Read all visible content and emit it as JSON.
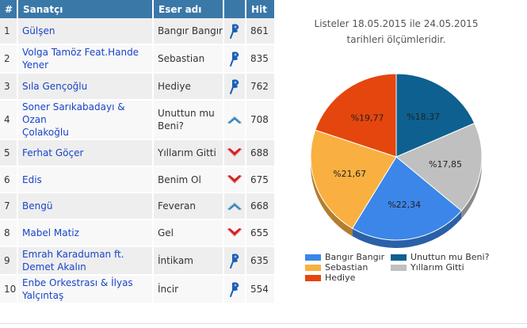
{
  "table": {
    "headers": {
      "rank": "#",
      "artist": "Sanatçı",
      "song": "Eser adı",
      "trend": "",
      "hit": "Hit"
    },
    "rows": [
      {
        "rank": "1",
        "artist_l1": "Gülşen",
        "artist_l2": "",
        "song_l1": "Bangır Bangır",
        "song_l2": "",
        "trend": "same",
        "hit": "861"
      },
      {
        "rank": "2",
        "artist_l1": "Volga Tamöz Feat.Hande",
        "artist_l2": "Yener",
        "song_l1": "Sebastian",
        "song_l2": "",
        "trend": "same",
        "hit": "835"
      },
      {
        "rank": "3",
        "artist_l1": "Sıla Gençoğlu",
        "artist_l2": "",
        "song_l1": "Hediye",
        "song_l2": "",
        "trend": "same",
        "hit": "762"
      },
      {
        "rank": "4",
        "artist_l1": "Soner Sarıkabadayı & Ozan",
        "artist_l2": "Çolakoğlu",
        "song_l1": "Unuttun mu",
        "song_l2": "Beni?",
        "trend": "up",
        "hit": "708"
      },
      {
        "rank": "5",
        "artist_l1": "Ferhat Göçer",
        "artist_l2": "",
        "song_l1": "Yıllarım Gitti",
        "song_l2": "",
        "trend": "down",
        "hit": "688"
      },
      {
        "rank": "6",
        "artist_l1": "Edis",
        "artist_l2": "",
        "song_l1": "Benim Ol",
        "song_l2": "",
        "trend": "down",
        "hit": "675"
      },
      {
        "rank": "7",
        "artist_l1": "Bengü",
        "artist_l2": "",
        "song_l1": "Feveran",
        "song_l2": "",
        "trend": "up",
        "hit": "668"
      },
      {
        "rank": "8",
        "artist_l1": "Mabel Matiz",
        "artist_l2": "",
        "song_l1": "Gel",
        "song_l2": "",
        "trend": "down",
        "hit": "655"
      },
      {
        "rank": "9",
        "artist_l1": "Emrah Karaduman ft.",
        "artist_l2": "Demet Akalın",
        "song_l1": "İntikam",
        "song_l2": "",
        "trend": "same",
        "hit": "635"
      },
      {
        "rank": "10",
        "artist_l1": "Enbe Orkestrası & İlyas",
        "artist_l2": "Yalçıntaş",
        "song_l1": "İncir",
        "song_l2": "",
        "trend": "same",
        "hit": "554"
      }
    ]
  },
  "caption": "Listeler 18.05.2015 ile 24.05.2015 tarihleri ölçümleridir.",
  "colors": {
    "header_bg": "#3a78a8",
    "link": "#1a44c8",
    "up": "#3a86b8",
    "down": "#d42020",
    "same": "#1a5fb4"
  },
  "chart_data": {
    "type": "pie",
    "title": "",
    "slices": [
      {
        "label": "Bangır Bangır",
        "value": 22.34,
        "text": "%22,34",
        "color": "#3b86e8"
      },
      {
        "label": "Sebastian",
        "value": 21.67,
        "text": "%21,67",
        "color": "#f9b040"
      },
      {
        "label": "Hediye",
        "value": 19.77,
        "text": "%19,77",
        "color": "#e4460e"
      },
      {
        "label": "Unuttun mu Beni?",
        "value": 18.37,
        "text": "%18,37",
        "color": "#0d6090"
      },
      {
        "label": "Yıllarım Gitti",
        "value": 17.85,
        "text": "%17,85",
        "color": "#c0c0c0"
      }
    ],
    "legend_position": "bottom"
  }
}
